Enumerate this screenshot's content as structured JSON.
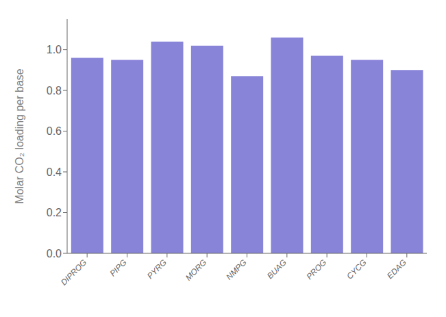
{
  "chart_data": {
    "type": "bar",
    "categories": [
      "DIPROG",
      "PIPG",
      "PYRG",
      "MORG",
      "NMPG",
      "BUAG",
      "PROG",
      "CYCG",
      "EDAG"
    ],
    "values": [
      0.96,
      0.95,
      1.04,
      1.02,
      0.87,
      1.06,
      0.97,
      0.95,
      0.9
    ],
    "ylabel": "Molar CO₂ loading per base",
    "ylim": [
      0.0,
      1.15
    ],
    "yticks": [
      {
        "value": 0.0,
        "label": "0.0"
      },
      0.2,
      0.4,
      0.6,
      0.8,
      {
        "value": 1.0,
        "label": "1.0"
      }
    ],
    "color": "#8884d8",
    "grid": false
  }
}
